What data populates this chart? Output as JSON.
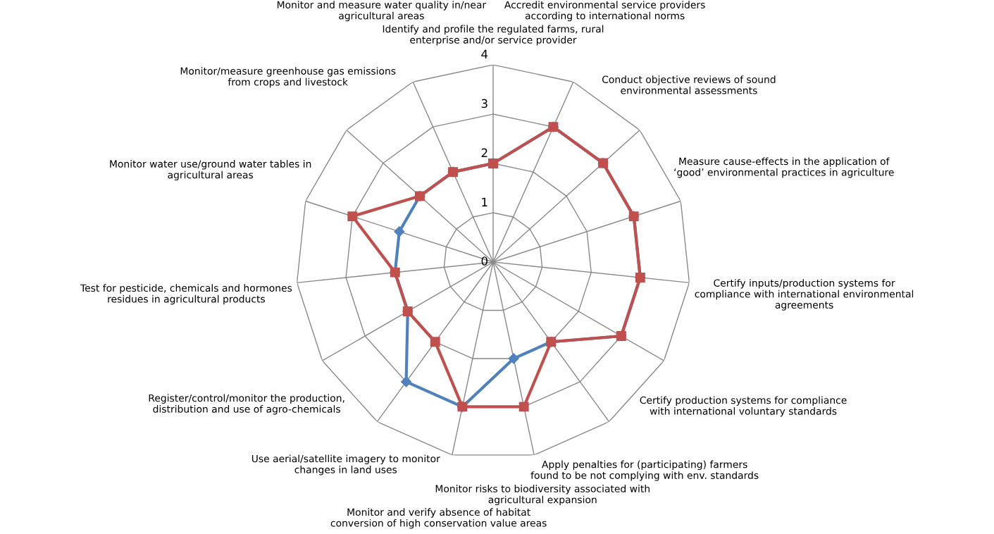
{
  "chart_data": {
    "type": "radar",
    "categories": [
      "Identify and profile the regulated farms, rural\nenterprise and/or service provider",
      "Accredit environmental service providers\naccording to international norms",
      "Conduct objective reviews of sound\nenvironmental assessments",
      "Measure cause-effects in the application of\n‘good’ environmental practices in agriculture",
      "Certify inputs/production systems for\ncompliance with international environmental\nagreements",
      "Certify production systems for compliance\nwith international voluntary standards",
      "Apply penalties for (participating) farmers\nfound to be not complying with env. standards",
      "Monitor risks to biodiversity associated with\nagricultural expansion",
      "Monitor and verify absence of habitat\nconversion of high conservation value areas",
      "Use aerial/satellite imagery to monitor\nchanges in land uses",
      "Register/control/monitor the production,\ndistribution and use of agro-chemicals",
      "Test for pesticide, chemicals and hormones\nresidues in agricultural products",
      "Monitor water use/ground water tables in\nagricultural areas",
      "Monitor/measure greenhouse gas emissions\nfrom crops and livestock",
      "Monitor and measure water quality in/near\nagricultural areas"
    ],
    "series": [
      {
        "color": "#4f81bd",
        "marker": "diamond",
        "values": [
          2,
          3,
          3,
          3,
          3,
          3,
          2,
          2,
          3,
          3,
          2,
          2,
          2,
          2,
          2
        ]
      },
      {
        "color": "#c0504d",
        "marker": "square",
        "values": [
          2,
          3,
          3,
          3,
          3,
          3,
          2,
          3,
          3,
          2,
          2,
          2,
          3,
          2,
          2
        ]
      }
    ],
    "ylim": [
      0,
      4
    ],
    "yticks": [
      0,
      1,
      2,
      3,
      4
    ],
    "grid": true
  }
}
